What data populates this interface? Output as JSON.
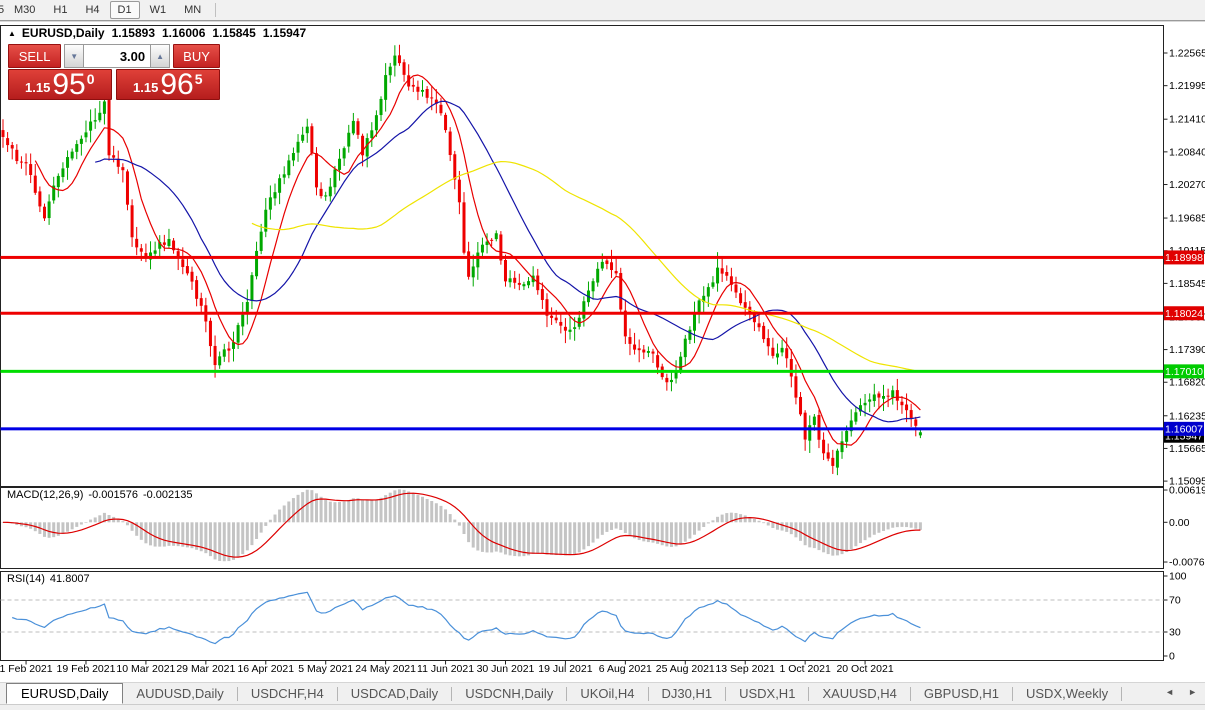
{
  "icons": {
    "collapse": "▲",
    "spinner_down": "▼",
    "spinner_up": "▲",
    "scroll_left": "◄",
    "scroll_right": "►"
  },
  "toolbar": {
    "partial_item": "5",
    "timeframes": [
      "M30",
      "H1",
      "H4",
      "D1",
      "W1",
      "MN"
    ],
    "active": "D1"
  },
  "chart_header": {
    "symbol_timeframe": "EURUSD,Daily",
    "ohlc": {
      "open": "1.15893",
      "high": "1.16006",
      "low": "1.15845",
      "close": "1.15947"
    }
  },
  "trade_panel": {
    "sell_label": "SELL",
    "buy_label": "BUY",
    "volume": "3.00",
    "sell_price": {
      "prefix": "1.15",
      "big": "95",
      "sup": "0"
    },
    "buy_price": {
      "prefix": "1.15",
      "big": "96",
      "sup": "5"
    }
  },
  "tab_bar": {
    "tabs": [
      {
        "label": "EURUSD,Daily",
        "active": true
      },
      {
        "label": "AUDUSD,Daily",
        "active": false
      },
      {
        "label": "USDCHF,H4",
        "active": false
      },
      {
        "label": "USDCAD,Daily",
        "active": false
      },
      {
        "label": "USDCNH,Daily",
        "active": false
      },
      {
        "label": "UKOil,H4",
        "active": false
      },
      {
        "label": "DJ30,H1",
        "active": false
      },
      {
        "label": "USDX,H1",
        "active": false
      },
      {
        "label": "XAUUSD,H4",
        "active": false
      },
      {
        "label": "GBPUSD,H1",
        "active": false
      },
      {
        "label": "USDX,Weekly",
        "active": false
      }
    ]
  },
  "chart_data": {
    "type": "candlestick",
    "symbol_timeframe": "EURUSD,Daily",
    "last_ohlc": {
      "open": 1.15893,
      "high": 1.16006,
      "low": 1.15845,
      "close": 1.15947
    },
    "colors": {
      "up": "#00A800",
      "down": "#EE0000",
      "hist": "#c4c4c4",
      "macd_signal": "#dd0000",
      "rsi_line": "#4a90d9",
      "pane_border": "#222222",
      "dashed_level": "#bdbdbd"
    },
    "y_ticks": [
      "1.22565",
      "1.21995",
      "1.21410",
      "1.20840",
      "1.20270",
      "1.19685",
      "1.19115",
      "1.18545",
      "1.17960",
      "1.17390",
      "1.16820",
      "1.16235",
      "1.15665",
      "1.15095"
    ],
    "hlines": [
      {
        "price": 1.18998,
        "color": "#EE0000",
        "tag_bg": "#E00000",
        "tag": "1.18998"
      },
      {
        "price": 1.18024,
        "color": "#EE0000",
        "tag_bg": "#E00000",
        "tag": "1.18024"
      },
      {
        "price": 1.1701,
        "color": "#00DD00",
        "tag_bg": "#00CC00",
        "tag": "1.17010"
      },
      {
        "price": 1.16007,
        "color": "#0000E6",
        "tag_bg": "#0000CC",
        "tag": "1.16007"
      }
    ],
    "bid_tag": {
      "price": 1.15947,
      "tag_bg": "#000000",
      "tag": "1.15947"
    },
    "x_labels": [
      "1 Feb 2021",
      "19 Feb 2021",
      "10 Mar 2021",
      "29 Mar 2021",
      "16 Apr 2021",
      "5 May 2021",
      "24 May 2021",
      "11 Jun 2021",
      "30 Jun 2021",
      "19 Jul 2021",
      "6 Aug 2021",
      "25 Aug 2021",
      "13 Sep 2021",
      "1 Oct 2021",
      "20 Oct 2021"
    ],
    "moving_averages": [
      {
        "period": 8,
        "color": "#E80000"
      },
      {
        "period": 21,
        "color": "#1414A8"
      },
      {
        "period": 55,
        "color": "#EFE400"
      }
    ],
    "candles": {
      "count": 200,
      "anchors": [
        [
          0,
          1.211
        ],
        [
          3,
          1.2068
        ],
        [
          5,
          1.2064
        ],
        [
          9,
          1.1968
        ],
        [
          12,
          1.2042
        ],
        [
          18,
          1.2118
        ],
        [
          22,
          1.2172
        ],
        [
          23,
          1.2078
        ],
        [
          26,
          1.2052
        ],
        [
          28,
          1.1935
        ],
        [
          31,
          1.1898
        ],
        [
          33,
          1.1912
        ],
        [
          36,
          1.1932
        ],
        [
          40,
          1.1872
        ],
        [
          44,
          1.1788
        ],
        [
          46,
          1.1712
        ],
        [
          50,
          1.1752
        ],
        [
          53,
          1.1822
        ],
        [
          57,
          1.1983
        ],
        [
          60,
          1.2038
        ],
        [
          63,
          1.2082
        ],
        [
          66,
          1.2128
        ],
        [
          68,
          1.2022
        ],
        [
          70,
          1.2008
        ],
        [
          73,
          1.2072
        ],
        [
          76,
          1.2138
        ],
        [
          78,
          1.2078
        ],
        [
          81,
          1.2148
        ],
        [
          83,
          1.2218
        ],
        [
          85,
          1.2252
        ],
        [
          88,
          1.2198
        ],
        [
          91,
          1.2192
        ],
        [
          94,
          1.2168
        ],
        [
          96,
          1.2122
        ],
        [
          99,
          1.1996
        ],
        [
          100,
          1.1908
        ],
        [
          101,
          1.1866
        ],
        [
          104,
          1.1922
        ],
        [
          107,
          1.1942
        ],
        [
          109,
          1.1858
        ],
        [
          112,
          1.1852
        ],
        [
          115,
          1.1868
        ],
        [
          118,
          1.1798
        ],
        [
          122,
          1.1772
        ],
        [
          124,
          1.1778
        ],
        [
          127,
          1.1842
        ],
        [
          130,
          1.1892
        ],
        [
          133,
          1.1872
        ],
        [
          135,
          1.1762
        ],
        [
          138,
          1.1738
        ],
        [
          141,
          1.1732
        ],
        [
          144,
          1.1682
        ],
        [
          146,
          1.1702
        ],
        [
          148,
          1.1758
        ],
        [
          150,
          1.1802
        ],
        [
          153,
          1.1848
        ],
        [
          155,
          1.1882
        ],
        [
          158,
          1.1852
        ],
        [
          161,
          1.1812
        ],
        [
          164,
          1.1778
        ],
        [
          167,
          1.1728
        ],
        [
          169,
          1.1742
        ],
        [
          171,
          1.1692
        ],
        [
          174,
          1.1582
        ],
        [
          176,
          1.1622
        ],
        [
          178,
          1.1558
        ],
        [
          180,
          1.1536
        ],
        [
          183,
          1.1597
        ],
        [
          186,
          1.1642
        ],
        [
          188,
          1.1652
        ],
        [
          191,
          1.1658
        ],
        [
          193,
          1.1668
        ],
        [
          195,
          1.1642
        ],
        [
          197,
          1.1618
        ],
        [
          198,
          1.1606
        ],
        [
          199,
          1.15947
        ]
      ],
      "wick_overrides": {
        "46": {
          "low": 1.169
        },
        "85": {
          "high": 1.227
        },
        "155": {
          "high": 1.1909
        },
        "180": {
          "low": 1.1522
        }
      }
    },
    "macd": {
      "label": "MACD(12,26,9)",
      "main_value": "-0.001576",
      "signal_value": "-0.002135",
      "params": [
        12,
        26,
        9
      ],
      "axis": [
        "0.006193",
        "0.00",
        "-0.007621"
      ]
    },
    "rsi": {
      "label": "RSI(14)",
      "value": "41.8007",
      "period": 14,
      "levels": [
        70,
        30
      ],
      "axis": [
        "100",
        "70",
        "30",
        "0"
      ]
    }
  }
}
